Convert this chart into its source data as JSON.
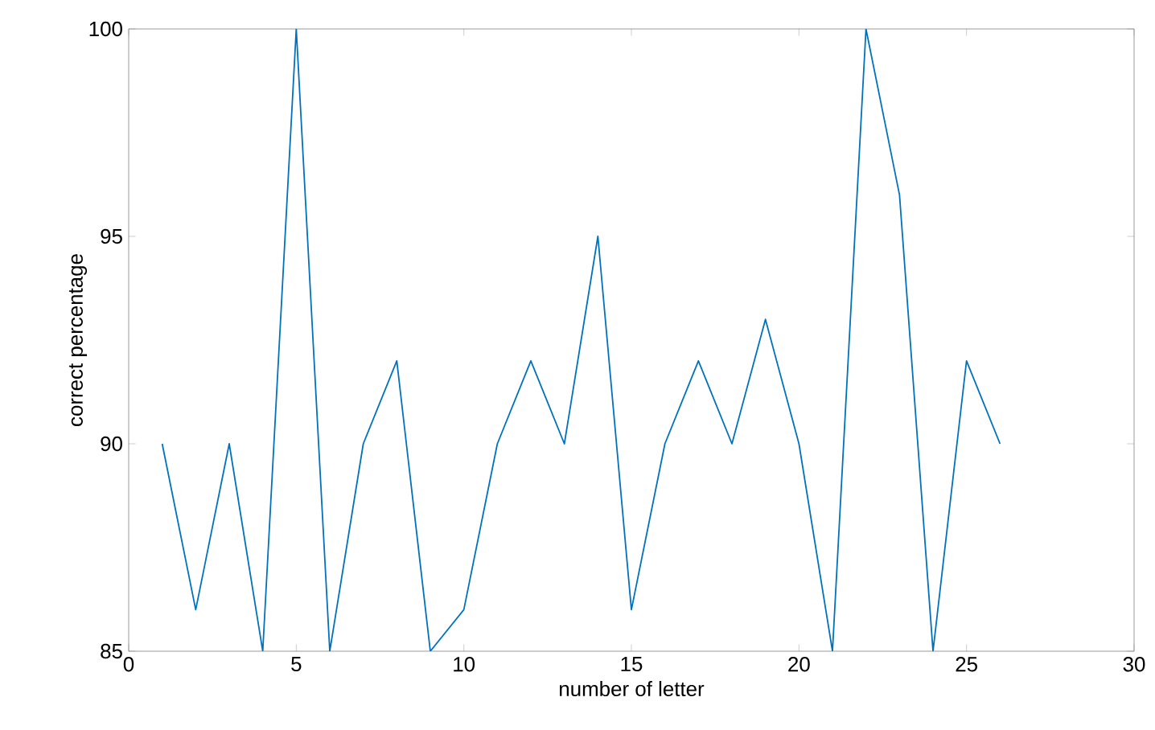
{
  "chart_data": {
    "type": "line",
    "xlabel": "number of letter",
    "ylabel": "correct percentage",
    "x": [
      1,
      2,
      3,
      4,
      5,
      6,
      7,
      8,
      9,
      10,
      11,
      12,
      13,
      14,
      15,
      16,
      17,
      18,
      19,
      20,
      21,
      22,
      23,
      24,
      25,
      26
    ],
    "series": [
      {
        "color": "#0072bd",
        "values": [
          90,
          86,
          90,
          85,
          100,
          85,
          90,
          92,
          85,
          86,
          90,
          92,
          90,
          95,
          86,
          90,
          92,
          90,
          93,
          90,
          85,
          100,
          96,
          85,
          92,
          90
        ]
      }
    ],
    "xlim": [
      0,
      30
    ],
    "ylim": [
      85,
      100
    ],
    "xticks": [
      0,
      5,
      10,
      15,
      20,
      25,
      30
    ],
    "yticks": [
      85,
      90,
      95,
      100
    ],
    "grid": false,
    "marker": "none",
    "line_style": "solid"
  }
}
